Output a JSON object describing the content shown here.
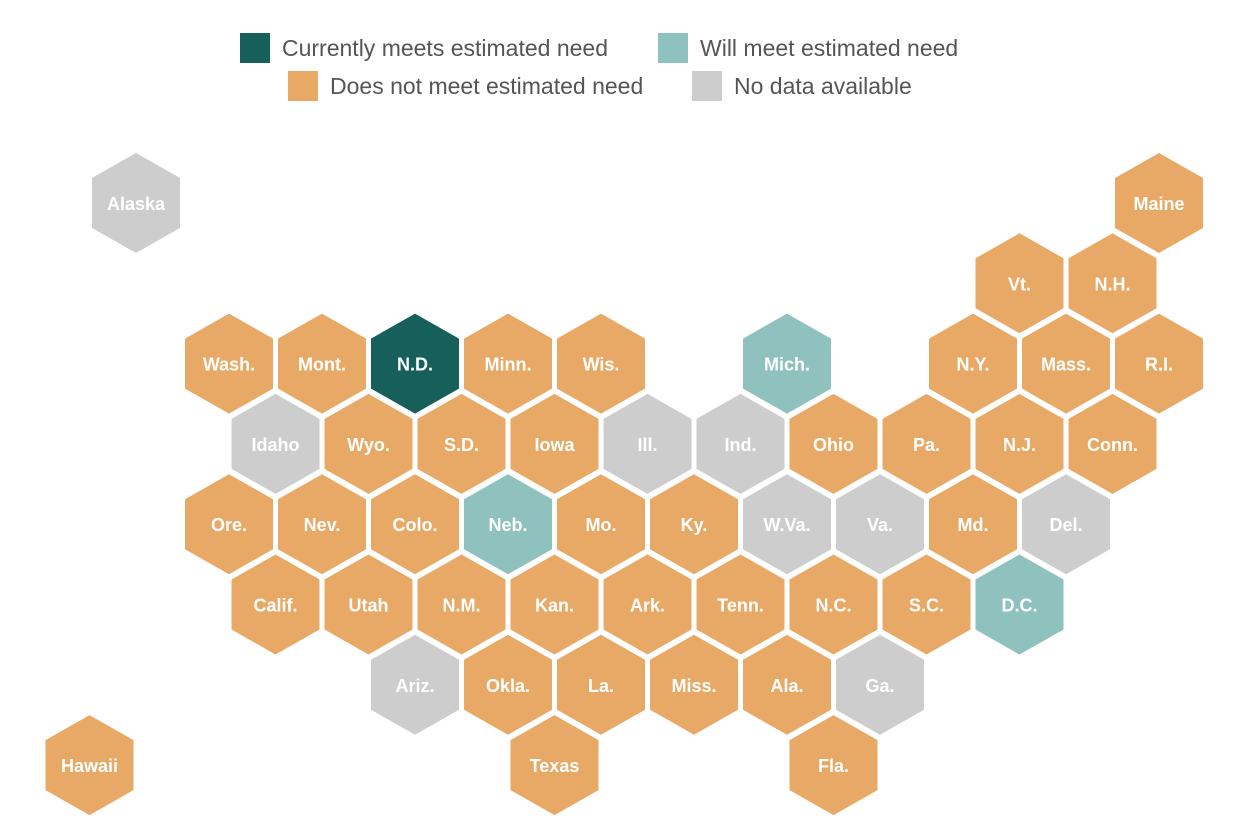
{
  "colors": {
    "meets": "#175f5a",
    "will_meet": "#8fc1bf",
    "does_not_meet": "#e8a966",
    "no_data": "#cdcdcd"
  },
  "legend": [
    {
      "key": "meets",
      "label": "Currently meets estimated need"
    },
    {
      "key": "will_meet",
      "label": "Will meet estimated need"
    },
    {
      "key": "does_not_meet",
      "label": "Does not meet estimated need"
    },
    {
      "key": "no_data",
      "label": "No data available"
    }
  ],
  "states": [
    {
      "abbr": "Alaska",
      "row": 0,
      "col": 0,
      "status": "no_data"
    },
    {
      "abbr": "Maine",
      "row": 0,
      "col": 11,
      "status": "does_not_meet"
    },
    {
      "abbr": "Vt.",
      "row": 1,
      "col": 9.5,
      "status": "does_not_meet"
    },
    {
      "abbr": "N.H.",
      "row": 1,
      "col": 10.5,
      "status": "does_not_meet"
    },
    {
      "abbr": "Wash.",
      "row": 2,
      "col": 1,
      "status": "does_not_meet"
    },
    {
      "abbr": "Mont.",
      "row": 2,
      "col": 2,
      "status": "does_not_meet"
    },
    {
      "abbr": "N.D.",
      "row": 2,
      "col": 3,
      "status": "meets"
    },
    {
      "abbr": "Minn.",
      "row": 2,
      "col": 4,
      "status": "does_not_meet"
    },
    {
      "abbr": "Wis.",
      "row": 2,
      "col": 5,
      "status": "does_not_meet"
    },
    {
      "abbr": "Mich.",
      "row": 2,
      "col": 7,
      "status": "will_meet"
    },
    {
      "abbr": "N.Y.",
      "row": 2,
      "col": 9,
      "status": "does_not_meet"
    },
    {
      "abbr": "Mass.",
      "row": 2,
      "col": 10,
      "status": "does_not_meet"
    },
    {
      "abbr": "R.I.",
      "row": 2,
      "col": 11,
      "status": "does_not_meet"
    },
    {
      "abbr": "Idaho",
      "row": 3,
      "col": 1.5,
      "status": "no_data"
    },
    {
      "abbr": "Wyo.",
      "row": 3,
      "col": 2.5,
      "status": "does_not_meet"
    },
    {
      "abbr": "S.D.",
      "row": 3,
      "col": 3.5,
      "status": "does_not_meet"
    },
    {
      "abbr": "Iowa",
      "row": 3,
      "col": 4.5,
      "status": "does_not_meet"
    },
    {
      "abbr": "Ill.",
      "row": 3,
      "col": 5.5,
      "status": "no_data"
    },
    {
      "abbr": "Ind.",
      "row": 3,
      "col": 6.5,
      "status": "no_data"
    },
    {
      "abbr": "Ohio",
      "row": 3,
      "col": 7.5,
      "status": "does_not_meet"
    },
    {
      "abbr": "Pa.",
      "row": 3,
      "col": 8.5,
      "status": "does_not_meet"
    },
    {
      "abbr": "N.J.",
      "row": 3,
      "col": 9.5,
      "status": "does_not_meet"
    },
    {
      "abbr": "Conn.",
      "row": 3,
      "col": 10.5,
      "status": "does_not_meet"
    },
    {
      "abbr": "Ore.",
      "row": 4,
      "col": 1,
      "status": "does_not_meet"
    },
    {
      "abbr": "Nev.",
      "row": 4,
      "col": 2,
      "status": "does_not_meet"
    },
    {
      "abbr": "Colo.",
      "row": 4,
      "col": 3,
      "status": "does_not_meet"
    },
    {
      "abbr": "Neb.",
      "row": 4,
      "col": 4,
      "status": "will_meet"
    },
    {
      "abbr": "Mo.",
      "row": 4,
      "col": 5,
      "status": "does_not_meet"
    },
    {
      "abbr": "Ky.",
      "row": 4,
      "col": 6,
      "status": "does_not_meet"
    },
    {
      "abbr": "W.Va.",
      "row": 4,
      "col": 7,
      "status": "no_data"
    },
    {
      "abbr": "Va.",
      "row": 4,
      "col": 8,
      "status": "no_data"
    },
    {
      "abbr": "Md.",
      "row": 4,
      "col": 9,
      "status": "does_not_meet"
    },
    {
      "abbr": "Del.",
      "row": 4,
      "col": 10,
      "status": "no_data"
    },
    {
      "abbr": "Calif.",
      "row": 5,
      "col": 1.5,
      "status": "does_not_meet"
    },
    {
      "abbr": "Utah",
      "row": 5,
      "col": 2.5,
      "status": "does_not_meet"
    },
    {
      "abbr": "N.M.",
      "row": 5,
      "col": 3.5,
      "status": "does_not_meet"
    },
    {
      "abbr": "Kan.",
      "row": 5,
      "col": 4.5,
      "status": "does_not_meet"
    },
    {
      "abbr": "Ark.",
      "row": 5,
      "col": 5.5,
      "status": "does_not_meet"
    },
    {
      "abbr": "Tenn.",
      "row": 5,
      "col": 6.5,
      "status": "does_not_meet"
    },
    {
      "abbr": "N.C.",
      "row": 5,
      "col": 7.5,
      "status": "does_not_meet"
    },
    {
      "abbr": "S.C.",
      "row": 5,
      "col": 8.5,
      "status": "does_not_meet"
    },
    {
      "abbr": "D.C.",
      "row": 5,
      "col": 9.5,
      "status": "will_meet"
    },
    {
      "abbr": "Ariz.",
      "row": 6,
      "col": 3,
      "status": "no_data"
    },
    {
      "abbr": "Okla.",
      "row": 6,
      "col": 4,
      "status": "does_not_meet"
    },
    {
      "abbr": "La.",
      "row": 6,
      "col": 5,
      "status": "does_not_meet"
    },
    {
      "abbr": "Miss.",
      "row": 6,
      "col": 6,
      "status": "does_not_meet"
    },
    {
      "abbr": "Ala.",
      "row": 6,
      "col": 7,
      "status": "does_not_meet"
    },
    {
      "abbr": "Ga.",
      "row": 6,
      "col": 8,
      "status": "no_data"
    },
    {
      "abbr": "Hawaii",
      "row": 7,
      "col": -0.5,
      "status": "does_not_meet"
    },
    {
      "abbr": "Texas",
      "row": 7,
      "col": 4.5,
      "status": "does_not_meet"
    },
    {
      "abbr": "Fla.",
      "row": 7,
      "col": 7.5,
      "status": "does_not_meet"
    }
  ]
}
